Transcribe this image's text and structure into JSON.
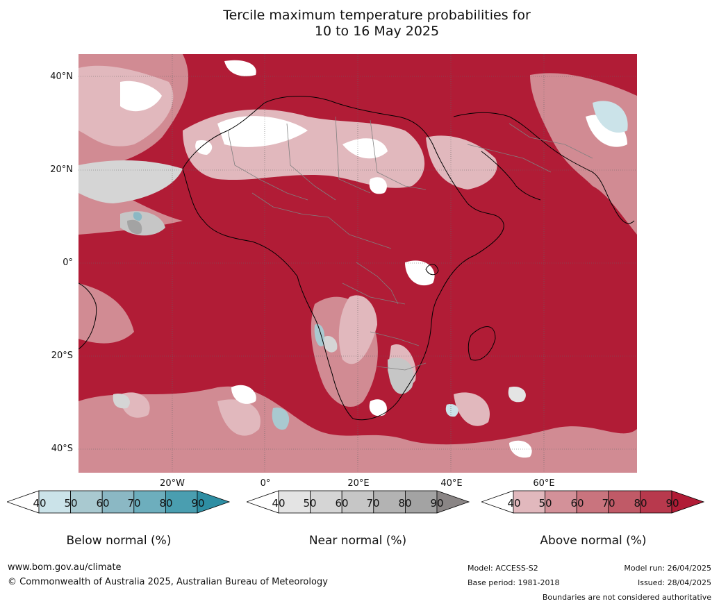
{
  "title": {
    "line1": "Tercile maximum temperature probabilities for",
    "line2": "10 to 16 May 2025"
  },
  "map": {
    "lat_labels": [
      "40°N",
      "20°N",
      "0°",
      "20°S",
      "40°S"
    ],
    "lon_labels": [
      "20°W",
      "0°",
      "20°E",
      "40°E",
      "60°E"
    ],
    "colors": {
      "ocean_above": "#b5203a",
      "land_outline": "#000000",
      "borders": "#808080",
      "gridlines": "#666666"
    }
  },
  "colorbars": [
    {
      "name": "below-normal",
      "title": "Below normal (%)",
      "ticks": [
        "40",
        "50",
        "60",
        "70",
        "80",
        "90"
      ],
      "colors": [
        "#ffffff",
        "#cbe3e9",
        "#a9c9d0",
        "#8bb8c4",
        "#6daebd",
        "#4a9eb0",
        "#2e8ea3"
      ]
    },
    {
      "name": "near-normal",
      "title": "Near normal (%)",
      "ticks": [
        "40",
        "50",
        "60",
        "70",
        "80",
        "90"
      ],
      "colors": [
        "#ffffff",
        "#e4e4e4",
        "#d5d5d5",
        "#c6c6c6",
        "#b3b3b3",
        "#a3a3a3",
        "#8a8585"
      ]
    },
    {
      "name": "above-normal",
      "title": "Above normal (%)",
      "ticks": [
        "40",
        "50",
        "60",
        "70",
        "80",
        "90"
      ],
      "colors": [
        "#ffffff",
        "#e1b8bd",
        "#d39199",
        "#c9747e",
        "#c05a67",
        "#b8394d",
        "#b11c36"
      ]
    }
  ],
  "footer": {
    "website": "www.bom.gov.au/climate",
    "copyright": "© Commonwealth of Australia 2025, Australian Bureau of Meteorology",
    "model": "Model: ACCESS-S2",
    "base_period": "Base period: 1981-2018",
    "model_run": "Model run: 26/04/2025",
    "issued": "Issued: 28/04/2025",
    "disclaimer": "Boundaries are not considered authoritative"
  }
}
